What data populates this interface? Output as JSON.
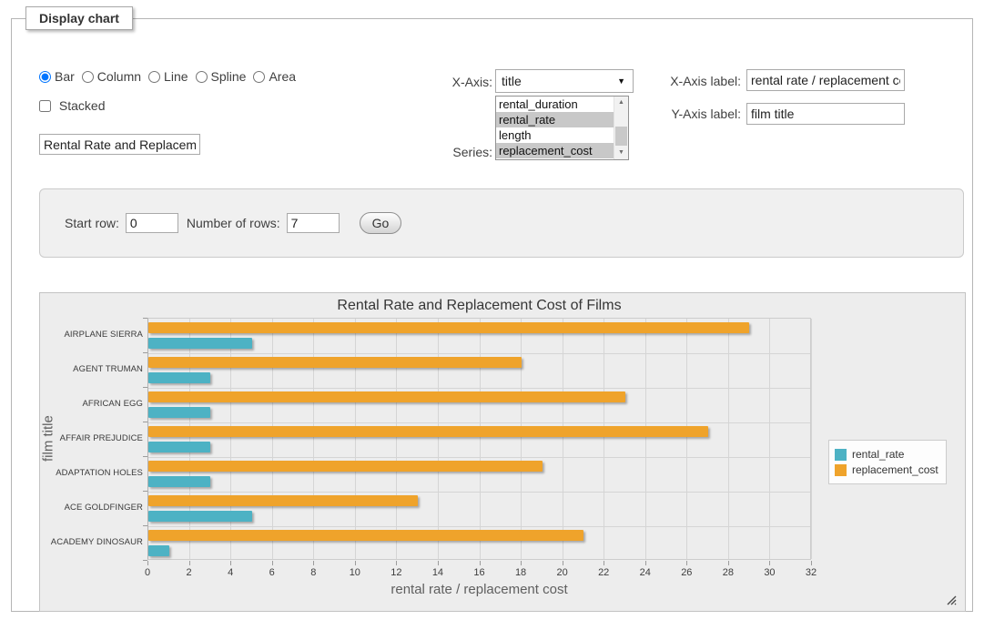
{
  "panel": {
    "legend": "Display chart"
  },
  "chart_type": {
    "options": [
      "Bar",
      "Column",
      "Line",
      "Spline",
      "Area"
    ],
    "selected": "Bar"
  },
  "stacked": {
    "label": "Stacked",
    "checked": false
  },
  "chart_title_input": {
    "value": "Rental Rate and Replacement Cost of Films"
  },
  "x_axis_select": {
    "label": "X-Axis:",
    "value": "title"
  },
  "series_select": {
    "label": "Series:",
    "options": [
      {
        "name": "rental_duration",
        "selected": false
      },
      {
        "name": "rental_rate",
        "selected": true
      },
      {
        "name": "length",
        "selected": false
      },
      {
        "name": "replacement_cost",
        "selected": true
      }
    ]
  },
  "x_axis_label_input": {
    "label": "X-Axis label:",
    "value": "rental rate / replacement cost"
  },
  "y_axis_label_input": {
    "label": "Y-Axis label:",
    "value": "film title"
  },
  "row_controls": {
    "start_row_label": "Start row:",
    "start_row_value": "0",
    "number_of_rows_label": "Number of rows:",
    "number_of_rows_value": "7",
    "go_label": "Go"
  },
  "colors": {
    "rental_rate": "#4DB2C4",
    "replacement_cost": "#EFA32B",
    "chart_background": "#EDEDED",
    "grid_line": "#D5D5D5"
  },
  "chart_data": {
    "type": "bar",
    "orientation": "horizontal",
    "title": "Rental Rate and Replacement Cost of Films",
    "xlabel": "rental rate / replacement cost",
    "ylabel": "film title",
    "categories": [
      "AIRPLANE SIERRA",
      "AGENT TRUMAN",
      "AFRICAN EGG",
      "AFFAIR PREJUDICE",
      "ADAPTATION HOLES",
      "ACE GOLDFINGER",
      "ACADEMY DINOSAUR"
    ],
    "series": [
      {
        "name": "rental_rate",
        "color": "#4DB2C4",
        "values": [
          4.99,
          2.99,
          2.99,
          2.99,
          2.99,
          4.99,
          0.99
        ]
      },
      {
        "name": "replacement_cost",
        "color": "#EFA32B",
        "values": [
          28.99,
          17.99,
          22.99,
          26.99,
          18.99,
          12.99,
          20.99
        ]
      }
    ],
    "band_order_top_first": [
      "replacement_cost",
      "rental_rate"
    ],
    "xlim": [
      0,
      32
    ],
    "xticks": [
      0,
      2,
      4,
      6,
      8,
      10,
      12,
      14,
      16,
      18,
      20,
      22,
      24,
      26,
      28,
      30,
      32
    ],
    "grid": true,
    "legend_position": "right"
  }
}
